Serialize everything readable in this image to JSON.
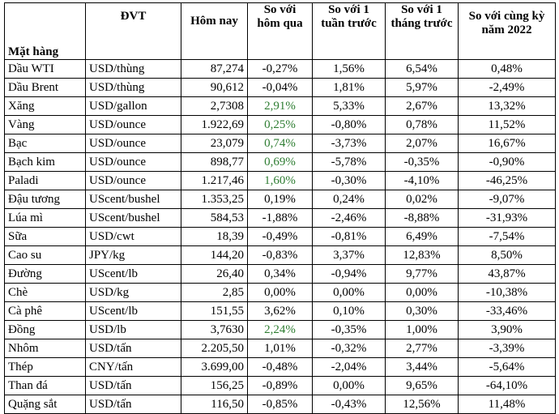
{
  "header": {
    "item": "Mặt hàng",
    "unit": "ĐVT",
    "today": "Hôm nay",
    "vs_yesterday": "So với hôm qua",
    "vs_week": "So với 1 tuần trước",
    "vs_month": "So với 1 tháng trước",
    "vs_year": "So với cùng kỳ năm 2022"
  },
  "colors": {
    "positive_day": "#2e7d32"
  },
  "rows": [
    {
      "name": "Dầu WTI",
      "unit": "USD/thùng",
      "today": "87,274",
      "day": "-0,27%",
      "week": "1,56%",
      "month": "6,54%",
      "year": "0,48%",
      "day_green": false
    },
    {
      "name": "Dầu Brent",
      "unit": "USD/thùng",
      "today": "90,612",
      "day": "-0,04%",
      "week": "1,81%",
      "month": "5,97%",
      "year": "-2,49%",
      "day_green": false
    },
    {
      "name": "Xăng",
      "unit": "USD/gallon",
      "today": "2,7308",
      "day": "2,91%",
      "week": "5,33%",
      "month": "2,67%",
      "year": "13,32%",
      "day_green": true
    },
    {
      "name": "Vàng",
      "unit": "USD/ounce",
      "today": "1.922,69",
      "day": "0,25%",
      "week": "-0,80%",
      "month": "0,78%",
      "year": "11,52%",
      "day_green": true
    },
    {
      "name": "Bạc",
      "unit": "USD/ounce",
      "today": "23,079",
      "day": "0,74%",
      "week": "-3,73%",
      "month": "2,07%",
      "year": "16,67%",
      "day_green": true
    },
    {
      "name": "Bạch kim",
      "unit": "USD/ounce",
      "today": "898,77",
      "day": "0,69%",
      "week": "-5,78%",
      "month": "-0,35%",
      "year": "-0,90%",
      "day_green": true
    },
    {
      "name": "Paladi",
      "unit": "USD/ounce",
      "today": "1.217,46",
      "day": "1,60%",
      "week": "-0,30%",
      "month": "-4,10%",
      "year": "-46,25%",
      "day_green": true
    },
    {
      "name": "Đậu tương",
      "unit": "UScent/bushel",
      "today": "1.353,25",
      "day": "0,19%",
      "week": "0,24%",
      "month": "0,02%",
      "year": "-9,07%",
      "day_green": false
    },
    {
      "name": "Lúa mì",
      "unit": "UScent/bushel",
      "today": "584,53",
      "day": "-1,88%",
      "week": "-2,46%",
      "month": "-8,88%",
      "year": "-31,93%",
      "day_green": false
    },
    {
      "name": "Sữa",
      "unit": "USD/cwt",
      "today": "18,39",
      "day": "-0,49%",
      "week": "-0,81%",
      "month": "6,49%",
      "year": "-7,54%",
      "day_green": false
    },
    {
      "name": "Cao su",
      "unit": "JPY/kg",
      "today": "144,20",
      "day": "-0,83%",
      "week": "3,37%",
      "month": "12,83%",
      "year": "8,50%",
      "day_green": false
    },
    {
      "name": "Đường",
      "unit": "UScent/lb",
      "today": "26,40",
      "day": "0,34%",
      "week": "-0,94%",
      "month": "9,77%",
      "year": "43,87%",
      "day_green": false
    },
    {
      "name": "Chè",
      "unit": "USD/kg",
      "today": "2,85",
      "day": "0,00%",
      "week": "0,00%",
      "month": "0,00%",
      "year": "-10,38%",
      "day_green": false
    },
    {
      "name": "Cà phê",
      "unit": "UScent/lb",
      "today": "151,55",
      "day": "3,62%",
      "week": "0,10%",
      "month": "0,30%",
      "year": "-33,46%",
      "day_green": false
    },
    {
      "name": "Đồng",
      "unit": "USD/lb",
      "today": "3,7630",
      "day": "2,24%",
      "week": "-0,35%",
      "month": "1,00%",
      "year": "3,90%",
      "day_green": true
    },
    {
      "name": "Nhôm",
      "unit": "USD/tấn",
      "today": "2.205,50",
      "day": "1,01%",
      "week": "-0,32%",
      "month": "2,77%",
      "year": "-3,39%",
      "day_green": false
    },
    {
      "name": "Thép",
      "unit": "CNY/tấn",
      "today": "3.699,00",
      "day": "-0,48%",
      "week": "-2,04%",
      "month": "3,44%",
      "year": "-5,64%",
      "day_green": false
    },
    {
      "name": "Than đá",
      "unit": "USD/tấn",
      "today": "156,25",
      "day": "-0,89%",
      "week": "0,00%",
      "month": "9,65%",
      "year": "-64,10%",
      "day_green": false
    },
    {
      "name": "Quặng sắt",
      "unit": "USD/tấn",
      "today": "116,50",
      "day": "-0,85%",
      "week": "-0,43%",
      "month": "12,56%",
      "year": "11,48%",
      "day_green": false
    }
  ]
}
